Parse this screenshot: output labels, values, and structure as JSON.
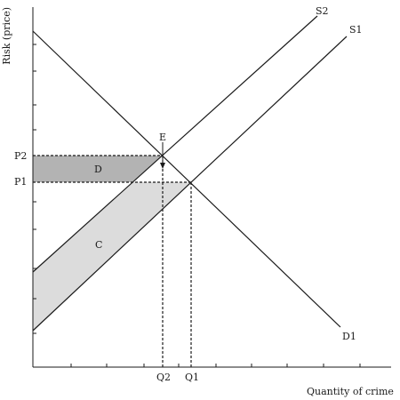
{
  "diagram": {
    "y_axis_label": "Risk (price)",
    "x_axis_label": "Quantity of crime",
    "curves": {
      "s1": "S1",
      "s2": "S2",
      "d1": "D1"
    },
    "price_labels": {
      "p1": "P1",
      "p2": "P2"
    },
    "quantity_labels": {
      "q1": "Q1",
      "q2": "Q2"
    },
    "equilibrium_label": "E",
    "area_labels": {
      "c": "C",
      "d": "D"
    },
    "colors": {
      "line": "#1a1a1a",
      "area_c": "#dcdcdc",
      "area_d": "#b3b3b3"
    }
  }
}
